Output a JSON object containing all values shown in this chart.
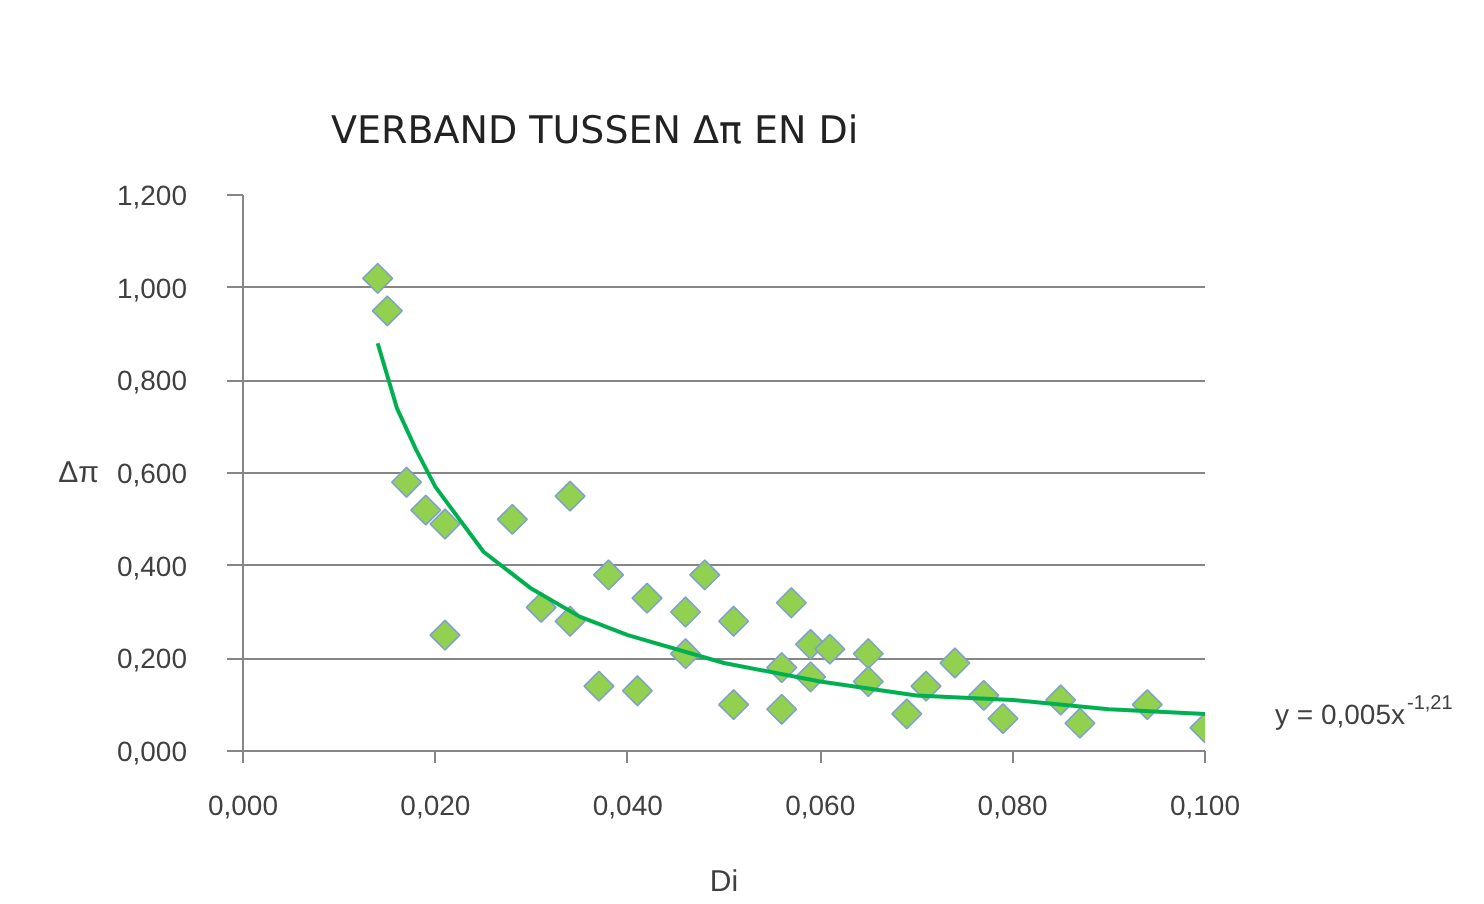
{
  "chart_data": {
    "type": "scatter",
    "title": "VERBAND TUSSEN Δπ EN Di",
    "xlabel": "Di",
    "ylabel": "Δπ",
    "xlim": [
      0,
      0.1
    ],
    "ylim": [
      0,
      1.2
    ],
    "xticks": [
      {
        "value": 0,
        "label": "0,000"
      },
      {
        "value": 0.02,
        "label": "0,020"
      },
      {
        "value": 0.04,
        "label": "0,040"
      },
      {
        "value": 0.06,
        "label": "0,060"
      },
      {
        "value": 0.08,
        "label": "0,080"
      },
      {
        "value": 0.1,
        "label": "0,100"
      }
    ],
    "yticks": [
      {
        "value": 0,
        "label": "0,000"
      },
      {
        "value": 0.2,
        "label": "0,200"
      },
      {
        "value": 0.4,
        "label": "0,400"
      },
      {
        "value": 0.6,
        "label": "0,600"
      },
      {
        "value": 0.8,
        "label": "0,800"
      },
      {
        "value": 1.0,
        "label": "1,000"
      },
      {
        "value": 1.2,
        "label": "1,200"
      }
    ],
    "grid": "y",
    "marker": "diamond",
    "series": [
      {
        "color": "#92d050",
        "x": [
          0.014,
          0.015,
          0.017,
          0.019,
          0.021,
          0.021,
          0.028,
          0.034,
          0.031,
          0.034,
          0.038,
          0.037,
          0.041,
          0.042,
          0.048,
          0.046,
          0.051,
          0.057,
          0.046,
          0.051,
          0.056,
          0.056,
          0.059,
          0.061,
          0.059,
          0.065,
          0.065,
          0.069,
          0.071,
          0.074,
          0.077,
          0.079,
          0.085,
          0.087,
          0.094,
          0.1
        ],
        "values": [
          1.02,
          0.95,
          0.58,
          0.52,
          0.49,
          0.25,
          0.5,
          0.55,
          0.31,
          0.28,
          0.38,
          0.14,
          0.13,
          0.33,
          0.38,
          0.3,
          0.28,
          0.32,
          0.21,
          0.1,
          0.09,
          0.18,
          0.23,
          0.22,
          0.16,
          0.21,
          0.15,
          0.08,
          0.14,
          0.19,
          0.12,
          0.07,
          0.11,
          0.06,
          0.1,
          0.05
        ]
      },
      {
        "type": "line",
        "color": "#00b050",
        "marker": "none",
        "x": [
          0.014,
          0.016,
          0.018,
          0.02,
          0.025,
          0.03,
          0.035,
          0.04,
          0.05,
          0.06,
          0.07,
          0.08,
          0.09,
          0.1
        ],
        "values": [
          0.88,
          0.74,
          0.65,
          0.57,
          0.43,
          0.35,
          0.29,
          0.25,
          0.19,
          0.15,
          0.12,
          0.11,
          0.09,
          0.08
        ]
      }
    ],
    "annotations": [
      {
        "text": "y = 0,005x$^{-1,21}$",
        "x": 0.1,
        "y": 0.08
      }
    ]
  }
}
